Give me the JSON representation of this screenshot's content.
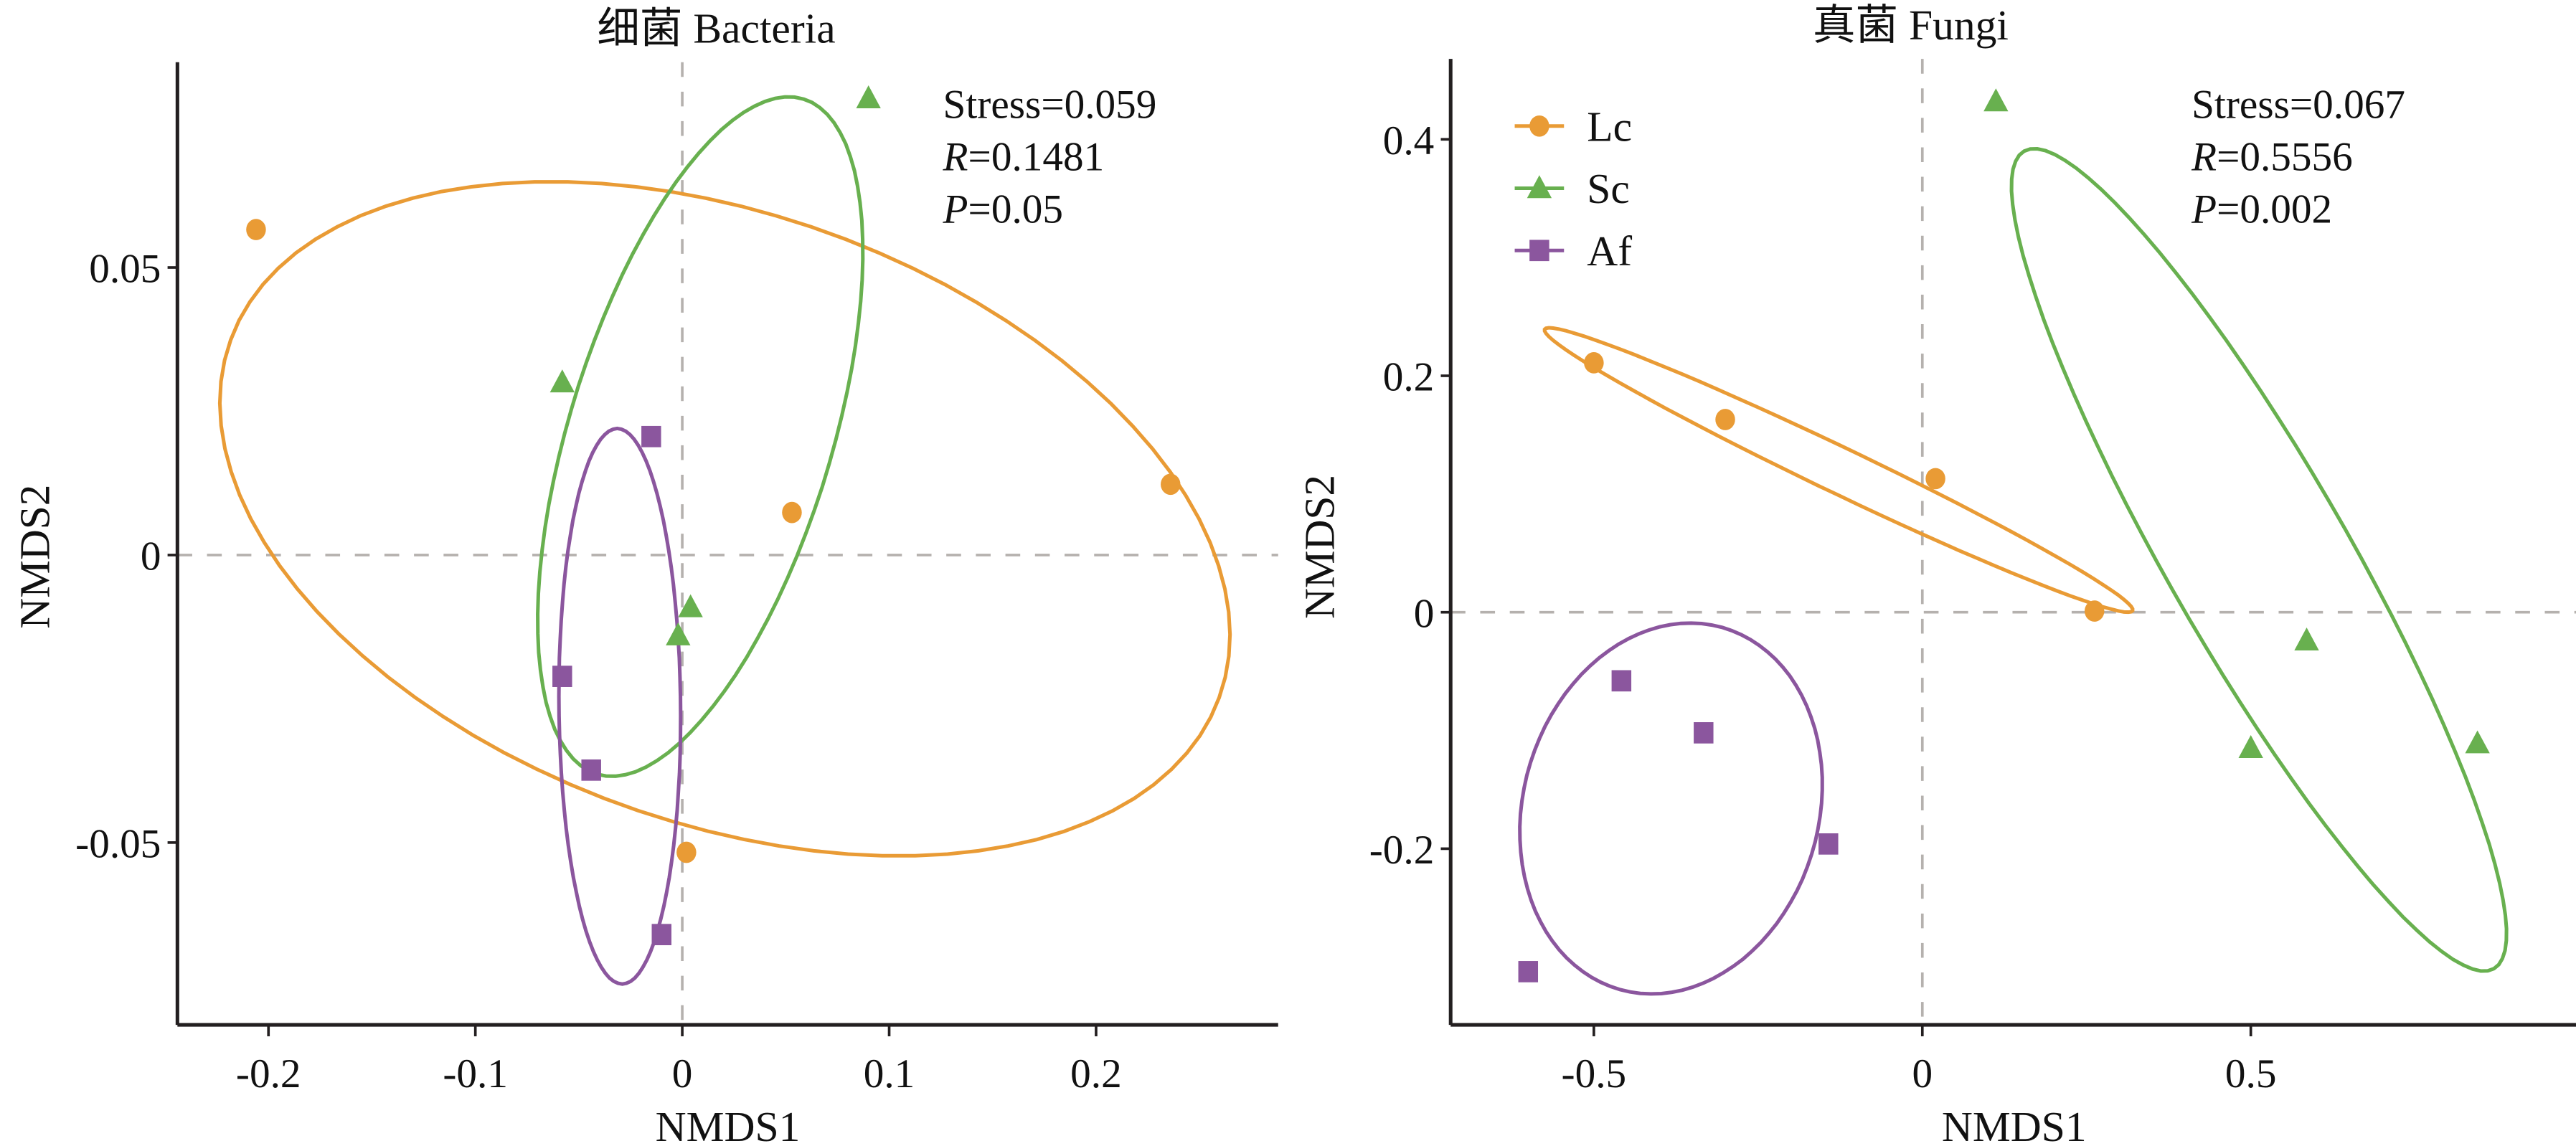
{
  "chart_data": [
    {
      "type": "scatter",
      "subtype": "nmds-ordination-with-ellipses",
      "title": "细菌 Bacteria",
      "xlabel": "NMDS1",
      "ylabel": "NMDS2",
      "xlim": [
        -0.244,
        0.288
      ],
      "ylim": [
        -0.0817,
        0.0857
      ],
      "xticks": [
        -0.2,
        -0.1,
        0,
        0.1,
        0.2
      ],
      "xtick_labels": [
        "-0.2",
        "-0.1",
        "0",
        "0.1",
        "0.2"
      ],
      "yticks": [
        -0.05,
        0,
        0.05
      ],
      "ytick_labels": [
        "-0.05",
        "0",
        "0.05"
      ],
      "reference_lines": {
        "x": 0,
        "y": 0
      },
      "grid": false,
      "annotation": {
        "stress": "Stress=0.059",
        "r_label": "R",
        "r_value": "=0.1481",
        "p_label": "P",
        "p_value": "=0.05"
      },
      "legend": null,
      "series": [
        {
          "name": "Lc",
          "color": "#e99b35",
          "marker": "circle",
          "points": [
            [
              -0.206,
              0.0566
            ],
            [
              0.053,
              0.0074
            ],
            [
              0.236,
              0.0123
            ],
            [
              0.002,
              -0.0517
            ]
          ],
          "ellipse": {
            "center": [
              0.0206,
              0.0063
            ],
            "major": [
              0.2389,
              -0.0311
            ],
            "minor": [
              -0.0502,
              -0.0497
            ]
          }
        },
        {
          "name": "Sc",
          "color": "#68b04f",
          "marker": "triangle",
          "points": [
            [
              0.09,
              0.0794
            ],
            [
              -0.058,
              0.03
            ],
            [
              0.004,
              -0.0091
            ],
            [
              -0.002,
              -0.014
            ]
          ],
          "ellipse": {
            "center": [
              0.0087,
              0.0206
            ],
            "major": [
              0.0499,
              0.0587
            ],
            "minor": [
              0.0607,
              -0.0067
            ]
          }
        },
        {
          "name": "Af",
          "color": "#8b569e",
          "marker": "square",
          "points": [
            [
              -0.015,
              0.0206
            ],
            [
              -0.058,
              -0.0211
            ],
            [
              -0.044,
              -0.0374
            ],
            [
              -0.01,
              -0.066
            ]
          ],
          "ellipse": {
            "center": [
              -0.0302,
              -0.0263
            ],
            "major": [
              -0.0012,
              0.0483
            ],
            "minor": [
              0.0294,
              0.0
            ]
          }
        }
      ]
    },
    {
      "type": "scatter",
      "subtype": "nmds-ordination-with-ellipses",
      "title": "真菌 Fungi",
      "xlabel": "NMDS1",
      "ylabel": "NMDS2",
      "xlim": [
        -0.718,
        0.995
      ],
      "ylim": [
        -0.349,
        0.468
      ],
      "xticks": [
        -0.5,
        0,
        0.5
      ],
      "xtick_labels": [
        "-0.5",
        "0",
        "0.5"
      ],
      "yticks": [
        -0.2,
        0,
        0.2,
        0.4
      ],
      "ytick_labels": [
        "-0.2",
        "0",
        "0.2",
        "0.4"
      ],
      "reference_lines": {
        "x": 0,
        "y": 0
      },
      "grid": false,
      "annotation": {
        "stress": "Stress=0.067",
        "r_label": "R",
        "r_value": "=0.5556",
        "p_label": "P",
        "p_value": "=0.002"
      },
      "legend": {
        "position": "top-left",
        "entries": [
          "Lc",
          "Sc",
          "Af"
        ]
      },
      "series": [
        {
          "name": "Lc",
          "color": "#e99b35",
          "marker": "circle",
          "points": [
            [
              -0.5,
              0.211
            ],
            [
              -0.3,
              0.163
            ],
            [
              0.02,
              0.113
            ],
            [
              0.262,
              0.001
            ]
          ],
          "ellipse": {
            "center": [
              -0.1275,
              0.1203
            ],
            "major": [
              0.4475,
              -0.119
            ],
            "minor": [
              -0.0152,
              -0.0174
            ]
          }
        },
        {
          "name": "Sc",
          "color": "#68b04f",
          "marker": "triangle",
          "points": [
            [
              0.112,
              0.432
            ],
            [
              0.585,
              -0.024
            ],
            [
              0.5,
              -0.115
            ],
            [
              0.845,
              -0.111
            ]
          ],
          "ellipse": {
            "center": [
              0.5125,
              0.0443
            ],
            "major": [
              0.3575,
              -0.3458
            ],
            "minor": [
              -0.119,
              -0.0378
            ]
          }
        },
        {
          "name": "Af",
          "color": "#8b569e",
          "marker": "square",
          "points": [
            [
              -0.458,
              -0.058
            ],
            [
              -0.333,
              -0.102
            ],
            [
              -0.143,
              -0.196
            ],
            [
              -0.6,
              -0.304
            ]
          ],
          "ellipse": {
            "center": [
              -0.3825,
              -0.166
            ],
            "major": [
              0.0775,
              0.1532
            ],
            "minor": [
              0.2168,
              -0.0335
            ]
          }
        }
      ]
    }
  ]
}
